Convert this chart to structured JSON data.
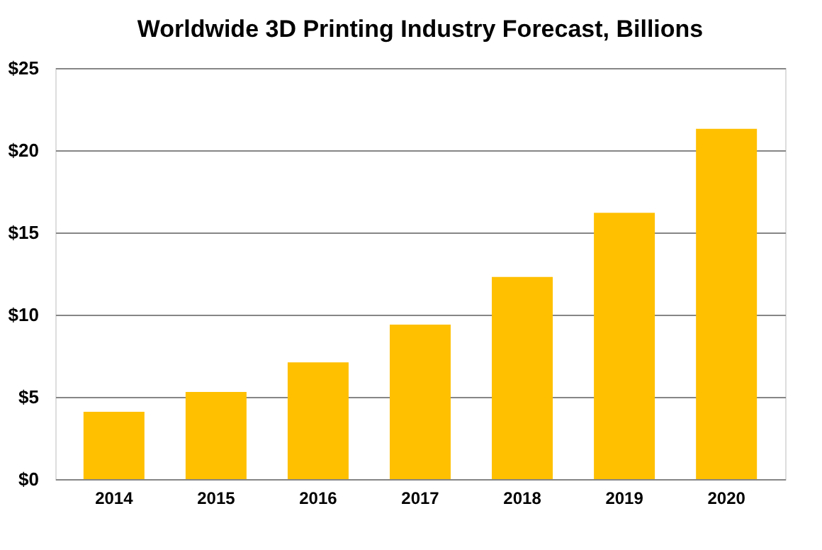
{
  "chart_data": {
    "type": "bar",
    "title": "Worldwide 3D Printing Industry Forecast, Billions",
    "categories": [
      "2014",
      "2015",
      "2016",
      "2017",
      "2018",
      "2019",
      "2020"
    ],
    "values": [
      4.1,
      5.3,
      7.1,
      9.4,
      12.3,
      16.2,
      21.3
    ],
    "color": "#ffc000",
    "ylim": [
      0,
      25
    ],
    "yticks": [
      {
        "value": 0,
        "label": "$0"
      },
      {
        "value": 5,
        "label": "$5"
      },
      {
        "value": 10,
        "label": "$10"
      },
      {
        "value": 15,
        "label": "$15"
      },
      {
        "value": 20,
        "label": "$20"
      },
      {
        "value": 25,
        "label": "$25"
      }
    ],
    "grid": "y"
  }
}
